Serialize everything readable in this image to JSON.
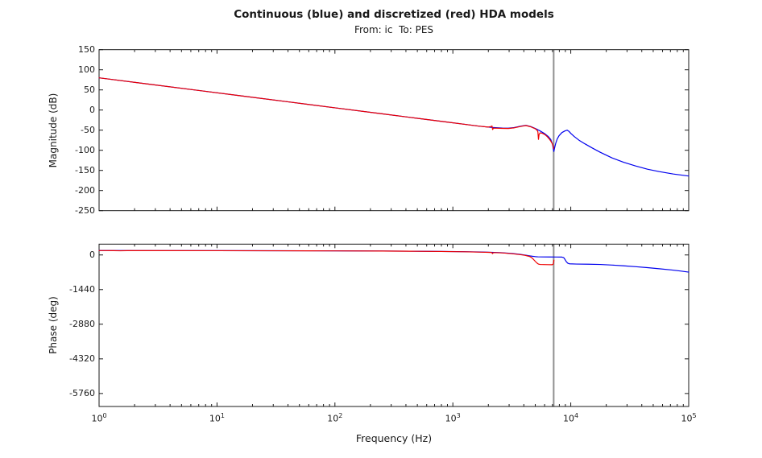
{
  "figure": {
    "title": "Continuous (blue) and discretized (red) HDA models",
    "subtitle": "From: ic  To: PES",
    "xlabel": "Frequency (Hz)",
    "background": "#ffffff",
    "colors": {
      "continuous_blue": "#0000ee",
      "discretized_red": "#ee0000",
      "nyquist_line": "#909090",
      "axis": "#1a1a1a",
      "text": "#1a1a1a"
    }
  },
  "x_axis": {
    "label": "Frequency (Hz)",
    "scale": "log10",
    "tick_base": "10",
    "tick_exponents": [
      0,
      1,
      2,
      3,
      4,
      5
    ],
    "xlim_hz": [
      1,
      100000
    ]
  },
  "chart_data": [
    {
      "type": "line",
      "id": "magnitude",
      "ylabel": "Magnitude (dB)",
      "xscale": "log10",
      "xlim_hz": [
        1,
        100000
      ],
      "ylim": [
        -250,
        150
      ],
      "grid": false,
      "legend": "none",
      "yticks": {
        "values": [
          150,
          100,
          50,
          0,
          -50,
          -100,
          -150,
          -200,
          -250
        ],
        "labels": [
          "150",
          "100",
          "50",
          "0",
          "-50",
          "-100",
          "-150",
          "-200",
          "-250"
        ]
      },
      "annotations": [
        {
          "type": "vline",
          "name": "nyquist-frequency-line",
          "x_log10_hz": 3.855
        }
      ],
      "series": [
        {
          "name": "continuous",
          "color_key": "continuous_blue",
          "points_log10hz_value": [
            [
              0,
              80
            ],
            [
              0.4,
              65.2
            ],
            [
              0.8,
              50.3
            ],
            [
              1.2,
              35.4
            ],
            [
              1.6,
              20.5
            ],
            [
              2.0,
              5.5
            ],
            [
              2.4,
              -9.4
            ],
            [
              2.7,
              -20.6
            ],
            [
              2.95,
              -29.9
            ],
            [
              3.1,
              -35.5
            ],
            [
              3.22,
              -40
            ],
            [
              3.32,
              -43
            ],
            [
              3.42,
              -44.8
            ],
            [
              3.47,
              -45
            ],
            [
              3.52,
              -43.5
            ],
            [
              3.58,
              -39.8
            ],
            [
              3.62,
              -38
            ],
            [
              3.66,
              -41
            ],
            [
              3.7,
              -46
            ],
            [
              3.74,
              -52
            ],
            [
              3.78,
              -59
            ],
            [
              3.81,
              -66
            ],
            [
              3.83,
              -73
            ],
            [
              3.845,
              -85
            ],
            [
              3.853,
              -98
            ],
            [
              3.857,
              -103
            ],
            [
              3.862,
              -95
            ],
            [
              3.872,
              -83
            ],
            [
              3.885,
              -72
            ],
            [
              3.9,
              -64
            ],
            [
              3.925,
              -56
            ],
            [
              3.95,
              -52
            ],
            [
              3.97,
              -50
            ],
            [
              3.985,
              -53
            ],
            [
              4.0,
              -58
            ],
            [
              4.03,
              -66
            ],
            [
              4.07,
              -75
            ],
            [
              4.12,
              -84
            ],
            [
              4.18,
              -94
            ],
            [
              4.25,
              -105
            ],
            [
              4.35,
              -119
            ],
            [
              4.45,
              -130
            ],
            [
              4.55,
              -139
            ],
            [
              4.65,
              -147
            ],
            [
              4.75,
              -153
            ],
            [
              4.87,
              -159
            ],
            [
              5.0,
              -164
            ]
          ]
        },
        {
          "name": "discretized",
          "color_key": "discretized_red",
          "points_log10hz_value": [
            [
              0,
              80
            ],
            [
              0.4,
              65.2
            ],
            [
              0.8,
              50.3
            ],
            [
              1.2,
              35.4
            ],
            [
              1.6,
              20.5
            ],
            [
              2.0,
              5.5
            ],
            [
              2.4,
              -9.4
            ],
            [
              2.7,
              -20.6
            ],
            [
              2.95,
              -29.9
            ],
            [
              3.1,
              -35.5
            ],
            [
              3.22,
              -40
            ],
            [
              3.3,
              -42.3
            ],
            [
              3.325,
              -41
            ],
            [
              3.332,
              -39.5
            ],
            [
              3.337,
              -48.5
            ],
            [
              3.345,
              -45
            ],
            [
              3.42,
              -45.6
            ],
            [
              3.47,
              -45.8
            ],
            [
              3.52,
              -44.3
            ],
            [
              3.58,
              -40.5
            ],
            [
              3.62,
              -38.6
            ],
            [
              3.66,
              -41.6
            ],
            [
              3.7,
              -46.8
            ],
            [
              3.714,
              -50
            ],
            [
              3.721,
              -54
            ],
            [
              3.726,
              -73
            ],
            [
              3.731,
              -61
            ],
            [
              3.74,
              -56.5
            ],
            [
              3.76,
              -58
            ],
            [
              3.78,
              -61
            ],
            [
              3.8,
              -66
            ],
            [
              3.815,
              -71
            ],
            [
              3.83,
              -77
            ],
            [
              3.842,
              -83
            ],
            [
              3.85,
              -89
            ],
            [
              3.856,
              -96
            ]
          ]
        }
      ]
    },
    {
      "type": "line",
      "id": "phase",
      "ylabel": "Phase (deg)",
      "xscale": "log10",
      "xlim_hz": [
        1,
        100000
      ],
      "ylim": [
        -6300,
        450
      ],
      "grid": false,
      "legend": "none",
      "yticks": {
        "values": [
          0,
          -1440,
          -2880,
          -4320,
          -5760
        ],
        "labels": [
          "0",
          "-1440",
          "-2880",
          "-4320",
          "-5760"
        ]
      },
      "annotations": [
        {
          "type": "vline",
          "name": "nyquist-frequency-line",
          "x_log10_hz": 3.855
        }
      ],
      "series": [
        {
          "name": "continuous",
          "color_key": "continuous_blue",
          "points_log10hz_value": [
            [
              0,
              183
            ],
            [
              0.5,
              181
            ],
            [
              1.0,
              179
            ],
            [
              1.5,
              176
            ],
            [
              2.0,
              171
            ],
            [
              2.4,
              164
            ],
            [
              2.7,
              155
            ],
            [
              2.9,
              147
            ],
            [
              3.1,
              135
            ],
            [
              3.25,
              120
            ],
            [
              3.4,
              95
            ],
            [
              3.5,
              62
            ],
            [
              3.57,
              25
            ],
            [
              3.62,
              -10
            ],
            [
              3.655,
              -40
            ],
            [
              3.675,
              -55
            ],
            [
              3.7,
              -70
            ],
            [
              3.72,
              -78
            ],
            [
              3.76,
              -81
            ],
            [
              3.82,
              -83
            ],
            [
              3.88,
              -85
            ],
            [
              3.925,
              -89
            ],
            [
              3.94,
              -110
            ],
            [
              3.95,
              -180
            ],
            [
              3.962,
              -280
            ],
            [
              3.975,
              -345
            ],
            [
              3.99,
              -368
            ],
            [
              4.05,
              -378
            ],
            [
              4.15,
              -385
            ],
            [
              4.25,
              -396
            ],
            [
              4.35,
              -420
            ],
            [
              4.45,
              -451
            ],
            [
              4.55,
              -487
            ],
            [
              4.65,
              -528
            ],
            [
              4.75,
              -573
            ],
            [
              4.85,
              -622
            ],
            [
              4.93,
              -668
            ],
            [
              5.0,
              -714
            ]
          ]
        },
        {
          "name": "discretized",
          "color_key": "discretized_red",
          "points_log10hz_value": [
            [
              0,
              182
            ],
            [
              0.12,
              180
            ],
            [
              0.18,
              173
            ],
            [
              0.24,
              179
            ],
            [
              0.5,
              180
            ],
            [
              1.0,
              177
            ],
            [
              1.5,
              174
            ],
            [
              2.0,
              169
            ],
            [
              2.4,
              162
            ],
            [
              2.7,
              152
            ],
            [
              2.9,
              144
            ],
            [
              3.1,
              131
            ],
            [
              3.25,
              115
            ],
            [
              3.3,
              108
            ],
            [
              3.33,
              104
            ],
            [
              3.336,
              55
            ],
            [
              3.344,
              99
            ],
            [
              3.42,
              86
            ],
            [
              3.5,
              52
            ],
            [
              3.57,
              15
            ],
            [
              3.61,
              -15
            ],
            [
              3.64,
              -50
            ],
            [
              3.655,
              -75
            ],
            [
              3.668,
              -110
            ],
            [
              3.682,
              -175
            ],
            [
              3.697,
              -255
            ],
            [
              3.712,
              -330
            ],
            [
              3.725,
              -378
            ],
            [
              3.74,
              -395
            ],
            [
              3.77,
              -400
            ],
            [
              3.81,
              -403
            ],
            [
              3.84,
              -406
            ],
            [
              3.85,
              -390
            ],
            [
              3.855,
              -300
            ],
            [
              3.857,
              -215
            ]
          ]
        }
      ]
    }
  ]
}
